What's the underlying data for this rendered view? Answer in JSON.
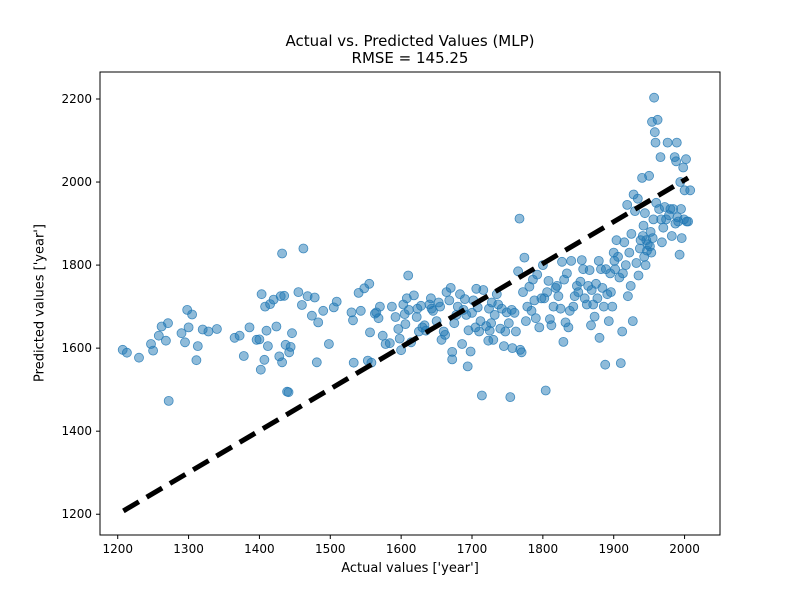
{
  "chart_data": {
    "type": "scatter",
    "title": "Actual vs. Predicted Values (MLP)",
    "subtitle": "RMSE = 145.25",
    "xlabel": "Actual values ['year']",
    "ylabel": "Predicted values ['year']",
    "xlim": [
      1175,
      2050
    ],
    "ylim": [
      1150,
      2265
    ],
    "xticks": [
      1200,
      1300,
      1400,
      1500,
      1600,
      1700,
      1800,
      1900,
      2000
    ],
    "yticks": [
      1200,
      1400,
      1600,
      1800,
      2000,
      2200
    ],
    "grid": false,
    "point_color": "#1f77b4",
    "point_alpha": 0.5,
    "reference_line": {
      "style": "dashed",
      "color": "#000000",
      "x": [
        1208,
        2005
      ],
      "y": [
        1208,
        2010
      ]
    },
    "points": [
      [
        1207,
        1596
      ],
      [
        1213,
        1589
      ],
      [
        1230,
        1577
      ],
      [
        1247,
        1610
      ],
      [
        1250,
        1594
      ],
      [
        1258,
        1630
      ],
      [
        1262,
        1652
      ],
      [
        1268,
        1618
      ],
      [
        1271,
        1660
      ],
      [
        1272,
        1473
      ],
      [
        1290,
        1636
      ],
      [
        1295,
        1614
      ],
      [
        1298,
        1692
      ],
      [
        1300,
        1650
      ],
      [
        1305,
        1681
      ],
      [
        1311,
        1571
      ],
      [
        1313,
        1605
      ],
      [
        1320,
        1645
      ],
      [
        1328,
        1640
      ],
      [
        1340,
        1646
      ],
      [
        1365,
        1625
      ],
      [
        1372,
        1630
      ],
      [
        1378,
        1581
      ],
      [
        1386,
        1650
      ],
      [
        1396,
        1620
      ],
      [
        1400,
        1621
      ],
      [
        1402,
        1548
      ],
      [
        1403,
        1730
      ],
      [
        1407,
        1572
      ],
      [
        1408,
        1700
      ],
      [
        1410,
        1642
      ],
      [
        1412,
        1605
      ],
      [
        1415,
        1706
      ],
      [
        1420,
        1717
      ],
      [
        1424,
        1652
      ],
      [
        1428,
        1580
      ],
      [
        1430,
        1725
      ],
      [
        1432,
        1828
      ],
      [
        1432,
        1566
      ],
      [
        1435,
        1726
      ],
      [
        1437,
        1608
      ],
      [
        1439,
        1495
      ],
      [
        1441,
        1494
      ],
      [
        1442,
        1590
      ],
      [
        1444,
        1603
      ],
      [
        1446,
        1636
      ],
      [
        1455,
        1735
      ],
      [
        1460,
        1704
      ],
      [
        1462,
        1840
      ],
      [
        1468,
        1725
      ],
      [
        1474,
        1678
      ],
      [
        1478,
        1722
      ],
      [
        1481,
        1566
      ],
      [
        1483,
        1662
      ],
      [
        1490,
        1690
      ],
      [
        1498,
        1610
      ],
      [
        1505,
        1698
      ],
      [
        1509,
        1712
      ],
      [
        1530,
        1686
      ],
      [
        1532,
        1667
      ],
      [
        1533,
        1565
      ],
      [
        1540,
        1733
      ],
      [
        1543,
        1690
      ],
      [
        1548,
        1744
      ],
      [
        1553,
        1570
      ],
      [
        1555,
        1755
      ],
      [
        1556,
        1638
      ],
      [
        1558,
        1565
      ],
      [
        1563,
        1683
      ],
      [
        1565,
        1686
      ],
      [
        1568,
        1672
      ],
      [
        1570,
        1700
      ],
      [
        1574,
        1630
      ],
      [
        1578,
        1610
      ],
      [
        1584,
        1612
      ],
      [
        1587,
        1700
      ],
      [
        1592,
        1675
      ],
      [
        1596,
        1646
      ],
      [
        1598,
        1623
      ],
      [
        1600,
        1595
      ],
      [
        1603,
        1705
      ],
      [
        1605,
        1682
      ],
      [
        1606,
        1658
      ],
      [
        1608,
        1720
      ],
      [
        1610,
        1775
      ],
      [
        1611,
        1692
      ],
      [
        1614,
        1614
      ],
      [
        1618,
        1727
      ],
      [
        1622,
        1675
      ],
      [
        1623,
        1695
      ],
      [
        1625,
        1640
      ],
      [
        1628,
        1702
      ],
      [
        1630,
        1650
      ],
      [
        1633,
        1655
      ],
      [
        1635,
        1642
      ],
      [
        1640,
        1705
      ],
      [
        1642,
        1720
      ],
      [
        1643,
        1695
      ],
      [
        1645,
        1690
      ],
      [
        1650,
        1665
      ],
      [
        1653,
        1710
      ],
      [
        1655,
        1700
      ],
      [
        1657,
        1620
      ],
      [
        1660,
        1640
      ],
      [
        1662,
        1632
      ],
      [
        1664,
        1735
      ],
      [
        1668,
        1715
      ],
      [
        1670,
        1745
      ],
      [
        1672,
        1591
      ],
      [
        1672,
        1573
      ],
      [
        1675,
        1660
      ],
      [
        1678,
        1680
      ],
      [
        1680,
        1700
      ],
      [
        1683,
        1730
      ],
      [
        1686,
        1610
      ],
      [
        1688,
        1692
      ],
      [
        1690,
        1718
      ],
      [
        1692,
        1680
      ],
      [
        1694,
        1556
      ],
      [
        1695,
        1643
      ],
      [
        1698,
        1592
      ],
      [
        1700,
        1685
      ],
      [
        1702,
        1715
      ],
      [
        1705,
        1650
      ],
      [
        1706,
        1743
      ],
      [
        1708,
        1698
      ],
      [
        1710,
        1640
      ],
      [
        1712,
        1665
      ],
      [
        1714,
        1486
      ],
      [
        1716,
        1740
      ],
      [
        1720,
        1653
      ],
      [
        1723,
        1618
      ],
      [
        1724,
        1695
      ],
      [
        1725,
        1642
      ],
      [
        1727,
        1660
      ],
      [
        1728,
        1710
      ],
      [
        1730,
        1620
      ],
      [
        1732,
        1680
      ],
      [
        1735,
        1730
      ],
      [
        1737,
        1705
      ],
      [
        1740,
        1647
      ],
      [
        1742,
        1695
      ],
      [
        1745,
        1605
      ],
      [
        1747,
        1640
      ],
      [
        1749,
        1686
      ],
      [
        1752,
        1660
      ],
      [
        1754,
        1482
      ],
      [
        1756,
        1692
      ],
      [
        1757,
        1600
      ],
      [
        1760,
        1685
      ],
      [
        1762,
        1640
      ],
      [
        1765,
        1785
      ],
      [
        1767,
        1912
      ],
      [
        1768,
        1596
      ],
      [
        1770,
        1590
      ],
      [
        1772,
        1735
      ],
      [
        1774,
        1818
      ],
      [
        1776,
        1665
      ],
      [
        1778,
        1700
      ],
      [
        1781,
        1748
      ],
      [
        1784,
        1690
      ],
      [
        1786,
        1765
      ],
      [
        1788,
        1715
      ],
      [
        1790,
        1672
      ],
      [
        1792,
        1777
      ],
      [
        1795,
        1650
      ],
      [
        1798,
        1720
      ],
      [
        1800,
        1800
      ],
      [
        1802,
        1720
      ],
      [
        1804,
        1498
      ],
      [
        1806,
        1735
      ],
      [
        1808,
        1762
      ],
      [
        1810,
        1670
      ],
      [
        1812,
        1655
      ],
      [
        1815,
        1700
      ],
      [
        1818,
        1745
      ],
      [
        1820,
        1750
      ],
      [
        1822,
        1725
      ],
      [
        1825,
        1695
      ],
      [
        1827,
        1808
      ],
      [
        1829,
        1615
      ],
      [
        1830,
        1765
      ],
      [
        1832,
        1662
      ],
      [
        1834,
        1780
      ],
      [
        1836,
        1650
      ],
      [
        1838,
        1690
      ],
      [
        1840,
        1810
      ],
      [
        1843,
        1700
      ],
      [
        1845,
        1725
      ],
      [
        1848,
        1750
      ],
      [
        1850,
        1735
      ],
      [
        1853,
        1760
      ],
      [
        1855,
        1812
      ],
      [
        1857,
        1790
      ],
      [
        1859,
        1720
      ],
      [
        1862,
        1705
      ],
      [
        1864,
        1750
      ],
      [
        1866,
        1788
      ],
      [
        1868,
        1655
      ],
      [
        1869,
        1740
      ],
      [
        1871,
        1705
      ],
      [
        1873,
        1676
      ],
      [
        1875,
        1755
      ],
      [
        1877,
        1720
      ],
      [
        1879,
        1810
      ],
      [
        1880,
        1625
      ],
      [
        1882,
        1790
      ],
      [
        1884,
        1745
      ],
      [
        1886,
        1700
      ],
      [
        1888,
        1560
      ],
      [
        1889,
        1790
      ],
      [
        1891,
        1730
      ],
      [
        1893,
        1665
      ],
      [
        1895,
        1780
      ],
      [
        1896,
        1735
      ],
      [
        1898,
        1700
      ],
      [
        1900,
        1830
      ],
      [
        1901,
        1810
      ],
      [
        1902,
        1790
      ],
      [
        1904,
        1860
      ],
      [
        1906,
        1820
      ],
      [
        1908,
        1770
      ],
      [
        1910,
        1564
      ],
      [
        1912,
        1640
      ],
      [
        1913,
        1780
      ],
      [
        1915,
        1855
      ],
      [
        1917,
        1800
      ],
      [
        1919,
        1945
      ],
      [
        1920,
        1725
      ],
      [
        1922,
        1830
      ],
      [
        1924,
        1750
      ],
      [
        1925,
        1875
      ],
      [
        1927,
        1665
      ],
      [
        1928,
        1970
      ],
      [
        1930,
        1930
      ],
      [
        1932,
        1805
      ],
      [
        1934,
        1960
      ],
      [
        1935,
        1775
      ],
      [
        1937,
        1840
      ],
      [
        1938,
        1860
      ],
      [
        1940,
        2010
      ],
      [
        1941,
        1870
      ],
      [
        1942,
        1895
      ],
      [
        1943,
        1820
      ],
      [
        1944,
        1925
      ],
      [
        1945,
        1800
      ],
      [
        1946,
        1860
      ],
      [
        1947,
        1835
      ],
      [
        1948,
        1850
      ],
      [
        1950,
        2015
      ],
      [
        1951,
        1845
      ],
      [
        1952,
        1880
      ],
      [
        1953,
        1830
      ],
      [
        1954,
        2145
      ],
      [
        1955,
        1865
      ],
      [
        1956,
        1910
      ],
      [
        1957,
        2203
      ],
      [
        1958,
        2120
      ],
      [
        1959,
        2095
      ],
      [
        1960,
        1950
      ],
      [
        1962,
        2150
      ],
      [
        1964,
        1935
      ],
      [
        1966,
        2060
      ],
      [
        1967,
        1910
      ],
      [
        1968,
        1855
      ],
      [
        1970,
        1890
      ],
      [
        1972,
        1940
      ],
      [
        1974,
        1910
      ],
      [
        1976,
        2095
      ],
      [
        1978,
        1920
      ],
      [
        1980,
        1935
      ],
      [
        1982,
        1870
      ],
      [
        1984,
        1935
      ],
      [
        1986,
        2060
      ],
      [
        1987,
        1900
      ],
      [
        1988,
        2050
      ],
      [
        1989,
        2095
      ],
      [
        1990,
        1915
      ],
      [
        1991,
        1905
      ],
      [
        1993,
        1825
      ],
      [
        1994,
        2000
      ],
      [
        1995,
        1935
      ],
      [
        1996,
        1865
      ],
      [
        1998,
        2035
      ],
      [
        1999,
        1910
      ],
      [
        2000,
        1980
      ],
      [
        2002,
        2055
      ],
      [
        2003,
        1905
      ],
      [
        2005,
        1905
      ],
      [
        2008,
        1980
      ]
    ]
  }
}
